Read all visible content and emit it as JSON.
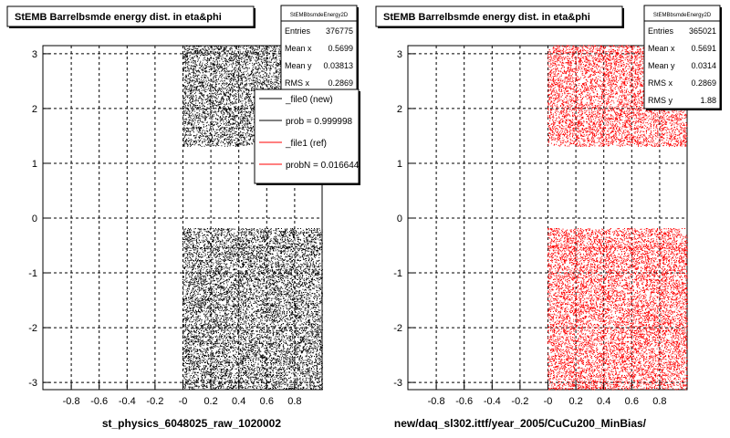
{
  "canvas_name": "eta&phi",
  "footer": "",
  "chart_data": [
    {
      "type": "scatter",
      "title": "StEMB Barrelbsmde energy dist. in eta&phi",
      "xlabel": "st_physics_6048025_raw_1020002",
      "ylabel": "",
      "xlim": [
        -1,
        1
      ],
      "ylim": [
        -3.14,
        3.14
      ],
      "x_ticks": [
        "-0.8",
        "-0.6",
        "-0.4",
        "-0.2",
        "-0",
        "0.2",
        "0.4",
        "0.6",
        "0.8"
      ],
      "y_ticks": [
        "3",
        "2",
        "1",
        "0",
        "-1",
        "-2",
        "-3"
      ],
      "grid": true,
      "point_color": "#000000",
      "regions": [
        {
          "x": [
            0.0,
            1.0
          ],
          "y": [
            -3.14,
            -0.2
          ]
        },
        {
          "x": [
            0.0,
            0.75
          ],
          "y": [
            1.3,
            3.14
          ]
        }
      ],
      "band_y": -0.55,
      "stats": {
        "name": "StEMBbsmdeEnergy2D",
        "rows": [
          {
            "label": "Entries",
            "value": "376775"
          },
          {
            "label": "Mean x",
            "value": "0.5699"
          },
          {
            "label": "Mean y",
            "value": "0.03813"
          },
          {
            "label": "RMS x",
            "value": "0.2869"
          }
        ]
      },
      "legend": {
        "placement": "top-right",
        "entries": [
          {
            "label": "_file0 (new)",
            "color": "#000000"
          },
          {
            "label": "prob = 0.999998",
            "color": "#000000"
          },
          {
            "label": "_file1 (ref)",
            "color": "#ff0000"
          },
          {
            "label": "probN = 0.016644",
            "color": "#ff0000"
          }
        ]
      }
    },
    {
      "type": "scatter",
      "title": "StEMB Barrelbsmde energy dist. in eta&phi",
      "xlabel": "new/daq_sl302.ittf/year_2005/CuCu200_MinBias/",
      "ylabel": "",
      "xlim": [
        -1,
        1
      ],
      "ylim": [
        -3.14,
        3.14
      ],
      "x_ticks": [
        "-0.8",
        "-0.6",
        "-0.4",
        "-0.2",
        "-0",
        "0.2",
        "0.4",
        "0.6",
        "0.8"
      ],
      "y_ticks": [
        "3",
        "2",
        "1",
        "0",
        "-1",
        "-2",
        "-3"
      ],
      "grid": true,
      "point_color": "#ff0000",
      "regions": [
        {
          "x": [
            0.0,
            1.0
          ],
          "y": [
            -3.14,
            -0.2
          ]
        },
        {
          "x": [
            0.0,
            1.0
          ],
          "y": [
            1.3,
            3.14
          ]
        }
      ],
      "band_y": -0.55,
      "stats": {
        "name": "StEMBbsmdeEnergy2D",
        "rows": [
          {
            "label": "Entries",
            "value": "365021"
          },
          {
            "label": "Mean x",
            "value": "0.5691"
          },
          {
            "label": "Mean y",
            "value": "0.0314"
          },
          {
            "label": "RMS x",
            "value": "0.2869"
          },
          {
            "label": "RMS y",
            "value": "1.88"
          }
        ]
      }
    }
  ]
}
